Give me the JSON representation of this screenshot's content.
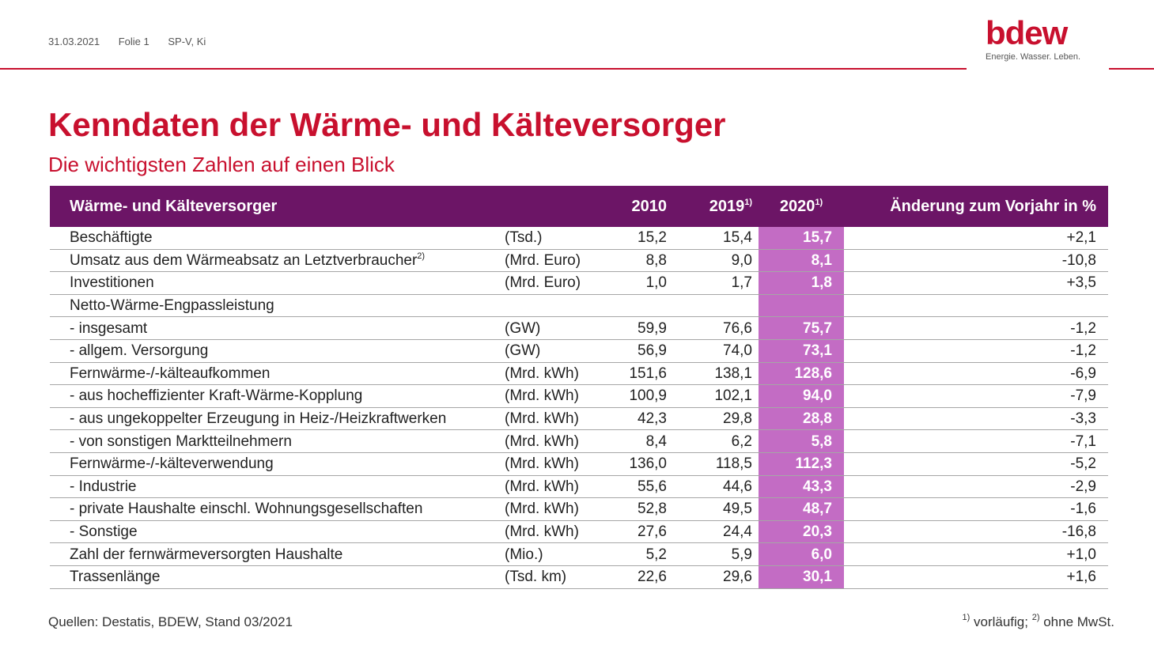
{
  "meta": {
    "date": "31.03.2021",
    "slide": "Folie 1",
    "author": "SP-V, Ki"
  },
  "logo": {
    "word": "bdew",
    "tagline": "Energie. Wasser. Leben.",
    "color": "#c8102e"
  },
  "title": "Kenndaten der Wärme- und Kälteversorger",
  "subtitle": "Die wichtigsten Zahlen auf einen Blick",
  "colors": {
    "accent": "#c8102e",
    "header_bg": "#6c1566",
    "highlight": "#c36cc4"
  },
  "table": {
    "header": {
      "label": "Wärme- und Kälteversorger",
      "y2010": "2010",
      "y2019": "2019",
      "y2019_sup": "1)",
      "y2020": "2020",
      "y2020_sup": "1)",
      "change": "Änderung zum Vorjahr in %"
    },
    "rows": [
      {
        "label": "Beschäftigte",
        "unit": "(Tsd.)",
        "v2010": "15,2",
        "v2019": "15,4",
        "v2020": "15,7",
        "change": "+2,1"
      },
      {
        "label": "Umsatz aus dem Wärmeabsatz an Letztverbraucher",
        "sup": "2)",
        "unit": "(Mrd. Euro)",
        "v2010": "8,8",
        "v2019": "9,0",
        "v2020": "8,1",
        "change": "-10,8"
      },
      {
        "label": "Investitionen",
        "unit": "(Mrd. Euro)",
        "v2010": "1,0",
        "v2019": "1,7",
        "v2020": "1,8",
        "change": "+3,5"
      },
      {
        "label": "Netto-Wärme-Engpassleistung",
        "unit": "",
        "v2010": "",
        "v2019": "",
        "v2020": "",
        "change": ""
      },
      {
        "label": "- insgesamt",
        "unit": "(GW)",
        "v2010": "59,9",
        "v2019": "76,6",
        "v2020": "75,7",
        "change": "-1,2"
      },
      {
        "label": "- allgem. Versorgung",
        "unit": "(GW)",
        "v2010": "56,9",
        "v2019": "74,0",
        "v2020": "73,1",
        "change": "-1,2"
      },
      {
        "label": "Fernwärme-/-kälteaufkommen",
        "unit": "(Mrd. kWh)",
        "v2010": "151,6",
        "v2019": "138,1",
        "v2020": "128,6",
        "change": "-6,9"
      },
      {
        "label": "- aus hocheffizienter Kraft-Wärme-Kopplung",
        "unit": "(Mrd. kWh)",
        "v2010": "100,9",
        "v2019": "102,1",
        "v2020": "94,0",
        "change": "-7,9"
      },
      {
        "label": "- aus ungekoppelter Erzeugung in Heiz-/Heizkraftwerken",
        "unit": "(Mrd. kWh)",
        "v2010": "42,3",
        "v2019": "29,8",
        "v2020": "28,8",
        "change": "-3,3"
      },
      {
        "label": "- von sonstigen Marktteilnehmern",
        "unit": "(Mrd. kWh)",
        "v2010": "8,4",
        "v2019": "6,2",
        "v2020": "5,8",
        "change": "-7,1"
      },
      {
        "label": "Fernwärme-/-kälteverwendung",
        "unit": "(Mrd. kWh)",
        "v2010": "136,0",
        "v2019": "118,5",
        "v2020": "112,3",
        "change": "-5,2"
      },
      {
        "label": "- Industrie",
        "unit": "(Mrd. kWh)",
        "v2010": "55,6",
        "v2019": "44,6",
        "v2020": "43,3",
        "change": "-2,9"
      },
      {
        "label": "- private Haushalte einschl. Wohnungsgesellschaften",
        "unit": "(Mrd. kWh)",
        "v2010": "52,8",
        "v2019": "49,5",
        "v2020": "48,7",
        "change": "-1,6"
      },
      {
        "label": "- Sonstige",
        "unit": "(Mrd. kWh)",
        "v2010": "27,6",
        "v2019": "24,4",
        "v2020": "20,3",
        "change": "-16,8"
      },
      {
        "label": "Zahl der fernwärmeversorgten Haushalte",
        "unit": "(Mio.)",
        "v2010": "5,2",
        "v2019": "5,9",
        "v2020": "6,0",
        "change": "+1,0"
      },
      {
        "label": "Trassenlänge",
        "unit": "(Tsd. km)",
        "v2010": "22,6",
        "v2019": "29,6",
        "v2020": "30,1",
        "change": "+1,6"
      }
    ]
  },
  "footer": {
    "sources": "Quellen: Destatis, BDEW, Stand 03/2021",
    "note1_sup": "1)",
    "note1_text": " vorläufig; ",
    "note2_sup": "2)",
    "note2_text": " ohne MwSt."
  }
}
